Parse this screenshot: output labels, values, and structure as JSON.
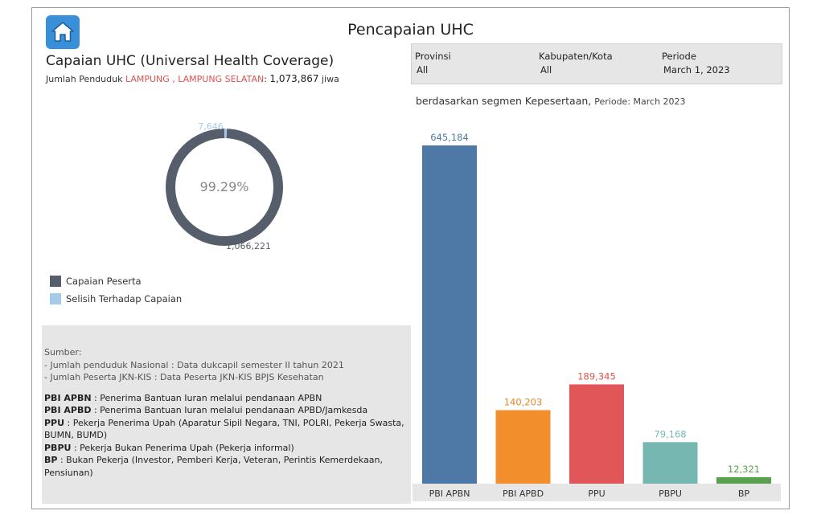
{
  "header": {
    "title": "Pencapaian UHC",
    "section_title": "Capaian UHC (Universal Health Coverage)",
    "population_prefix": "Jumlah Penduduk ",
    "population_region": "LAMPUNG , LAMPUNG SELATAN",
    "population_colon": ": ",
    "population_value": "1,073,867",
    "population_unit": " jiwa"
  },
  "filters": [
    {
      "label": "Provinsi",
      "value": "All"
    },
    {
      "label": "Kabupaten/Kota",
      "value": "All"
    },
    {
      "label": "Periode",
      "value": "March 1, 2023"
    }
  ],
  "segment": {
    "title": "berdasarkan segmen Kepesertaan, ",
    "period_label": "Periode: ",
    "period_value": "March 2023"
  },
  "donut": {
    "center_label": "99.29%",
    "achieved_label": "1,066,221",
    "gap_label": "7,646",
    "achieved_value": 1066221,
    "gap_value": 7646,
    "achieved_color": "#575e6b",
    "gap_color": "#a6cbe8"
  },
  "legend": [
    {
      "label": "Capaian Peserta",
      "color": "#575e6b"
    },
    {
      "label": "Selisih Terhadap Capaian",
      "color": "#a6cbe8"
    }
  ],
  "notes": {
    "source_title": "Sumber:",
    "source_lines": [
      "- Jumlah penduduk Nasional : Data dukcapil semester II tahun 2021",
      "- Jumlah Peserta JKN-KIS : Data Peserta JKN-KIS BPJS Kesehatan"
    ],
    "definitions": [
      {
        "term": "PBI APBN",
        "desc": " : Penerima Bantuan Iuran melalui pendanaan APBN"
      },
      {
        "term": "PBI APBD",
        "desc": " : Penerima Bantuan Iuran melalui pendanaan APBD/Jamkesda"
      },
      {
        "term": "PPU",
        "desc": " : Pekerja Penerima Upah (Aparatur Sipil Negara, TNI, POLRI, Pekerja Swasta, BUMN, BUMD)"
      },
      {
        "term": "PBPU",
        "desc": " : Pekerja Bukan Penerima Upah (Pekerja informal)"
      },
      {
        "term": "BP",
        "desc": " : Bukan Pekerja (Investor, Pemberi Kerja, Veteran, Perintis Kemerdekaan, Pensiunan)"
      }
    ]
  },
  "chart_data": {
    "type": "bar",
    "title": "",
    "xlabel": "",
    "ylabel": "",
    "categories": [
      "PBI APBN",
      "PBI APBD",
      "PPU",
      "PBPU",
      "BP"
    ],
    "values": [
      645184,
      140203,
      189345,
      79168,
      12321
    ],
    "value_labels": [
      "645,184",
      "140,203",
      "189,345",
      "79,168",
      "12,321"
    ],
    "colors": [
      "#4e79a7",
      "#f28e2b",
      "#e15759",
      "#76b7b2",
      "#59a14f"
    ],
    "label_colors": [
      "#4e79a7",
      "#e0882a",
      "#d9534f",
      "#76b7b2",
      "#59a14f"
    ],
    "ylim": [
      0,
      645184
    ],
    "grid": false,
    "legend": "none"
  }
}
